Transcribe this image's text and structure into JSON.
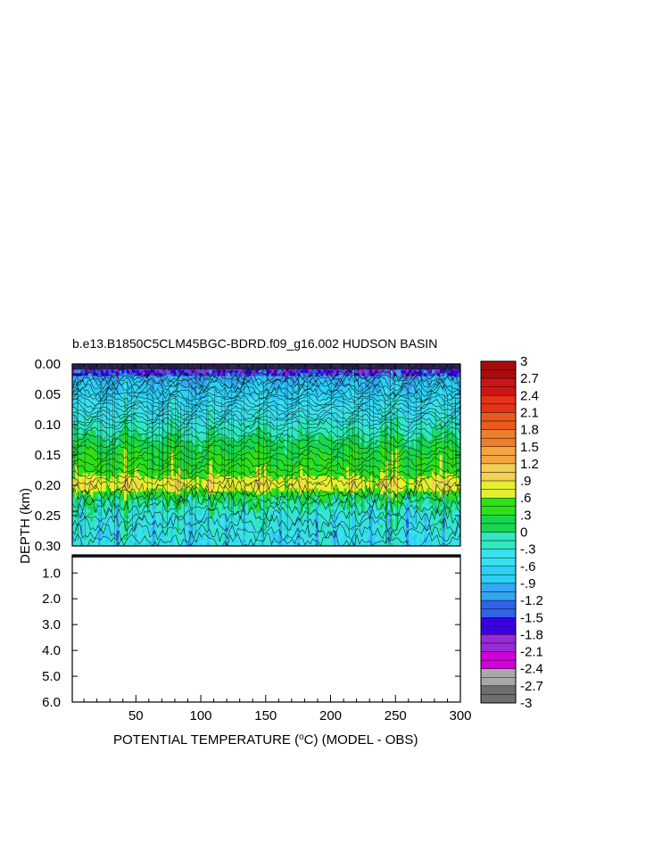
{
  "chart_data": {
    "type": "heatmap",
    "title": "b.e13.B1850C5CLM45BGC-BDRD.f09_g16.002 HUDSON BASIN",
    "xlabel": "POTENTIAL TEMPERATURE (",
    "xlabel_unit_super": "o",
    "xlabel_rest": "C) (MODEL - OBS)",
    "ylabel": "DEPTH (km)",
    "xlim": [
      1,
      300
    ],
    "x_ticks": [
      "50",
      "100",
      "150",
      "200",
      "250",
      "300"
    ],
    "x_tick_values": [
      50,
      100,
      150,
      200,
      250,
      300
    ],
    "upper_panel": {
      "ylim": [
        0.0,
        0.3
      ],
      "y_ticks": [
        "0.00",
        "0.05",
        "0.10",
        "0.15",
        "0.20",
        "0.25",
        "0.30"
      ],
      "y_tick_values": [
        0.0,
        0.05,
        0.1,
        0.15,
        0.2,
        0.25,
        0.3
      ],
      "depth_profile": [
        {
          "depth": 0.0,
          "value": -2.0
        },
        {
          "depth": 0.01,
          "value": -1.2
        },
        {
          "depth": 0.03,
          "value": -0.9
        },
        {
          "depth": 0.06,
          "value": -0.6
        },
        {
          "depth": 0.09,
          "value": -0.35
        },
        {
          "depth": 0.12,
          "value": 0.0
        },
        {
          "depth": 0.14,
          "value": 0.25
        },
        {
          "depth": 0.16,
          "value": 0.35
        },
        {
          "depth": 0.18,
          "value": 0.45
        },
        {
          "depth": 0.195,
          "value": 0.85
        },
        {
          "depth": 0.205,
          "value": 0.75
        },
        {
          "depth": 0.22,
          "value": 0.2
        },
        {
          "depth": 0.25,
          "value": -0.3
        },
        {
          "depth": 0.3,
          "value": -0.45
        }
      ]
    },
    "lower_panel": {
      "ylim": [
        0.3,
        6.0
      ],
      "y_ticks": [
        "1.0",
        "2.0",
        "3.0",
        "4.0",
        "5.0",
        "6.0"
      ],
      "y_tick_values": [
        1.0,
        2.0,
        3.0,
        4.0,
        5.0,
        6.0
      ]
    },
    "colorbar": {
      "vmin": -3.0,
      "vmax": 3.0,
      "step": 0.15,
      "labels": [
        "3",
        "2.7",
        "2.4",
        "2.1",
        "1.8",
        "1.5",
        "1.2",
        ".9",
        ".6",
        ".3",
        "0",
        "-.3",
        "-.6",
        "-.9",
        "-1.2",
        "-1.5",
        "-1.8",
        "-2.1",
        "-2.4",
        "-2.7",
        "-3"
      ],
      "label_values": [
        3,
        2.7,
        2.4,
        2.1,
        1.8,
        1.5,
        1.2,
        0.9,
        0.6,
        0.3,
        0,
        -0.3,
        -0.6,
        -0.9,
        -1.2,
        -1.5,
        -1.8,
        -2.1,
        -2.4,
        -2.7,
        -3
      ],
      "colors": {
        "-3.0": "#6e6e6e",
        "-2.7": "#a8a8a8",
        "-2.4": "#d000d8",
        "-2.1": "#9a2ad8",
        "-1.8": "#3a00e0",
        "-1.5": "#2f63e8",
        "-1.2": "#33a8f2",
        "-0.9": "#2ad0f5",
        "-0.6": "#3be0ee",
        "-0.3": "#2ee8c0",
        "0.0": "#18d64e",
        "0.3": "#2ee01a",
        "0.6": "#e4ef30",
        "0.9": "#f2cf55",
        "1.2": "#f4a442",
        "1.5": "#ec7e2c",
        "1.8": "#ea5a1c",
        "2.1": "#e43318",
        "2.4": "#cc1616",
        "2.7": "#a80c0c"
      }
    }
  }
}
